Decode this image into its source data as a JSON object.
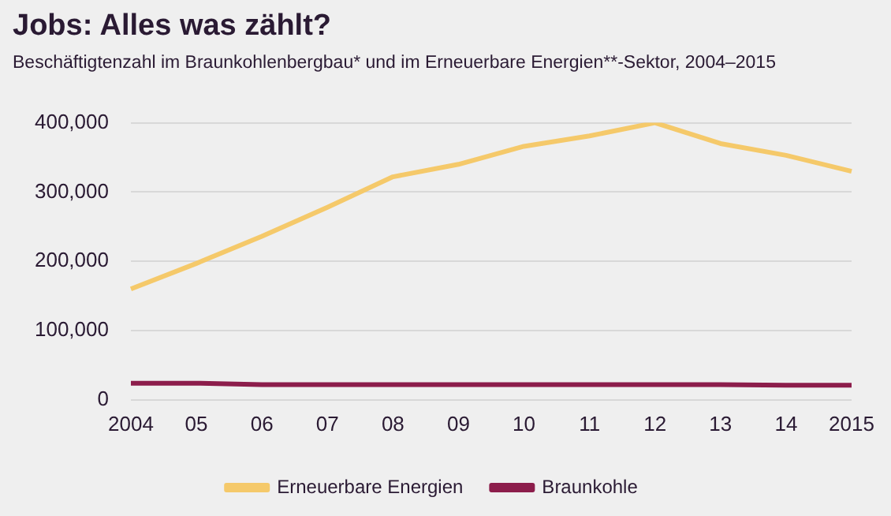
{
  "chart_data": {
    "type": "line",
    "title": "Jobs: Alles was zählt?",
    "subtitle": "Beschäftigtenzahl im Braunkohlenbergbau* und im Erneuerbare Energien**-Sektor, 2004–2015",
    "categories": [
      "2004",
      "05",
      "06",
      "07",
      "08",
      "09",
      "10",
      "11",
      "12",
      "13",
      "14",
      "2015"
    ],
    "series": [
      {
        "name": "Erneuerbare Energien",
        "color": "#f5c96a",
        "values": [
          160000,
          197000,
          236000,
          278000,
          322000,
          340000,
          366000,
          381000,
          400000,
          370000,
          353000,
          330000
        ]
      },
      {
        "name": "Braunkohle",
        "color": "#8c1d4b",
        "values": [
          24000,
          24000,
          22000,
          22000,
          22000,
          22000,
          22000,
          22000,
          22000,
          22000,
          21000,
          21000
        ]
      }
    ],
    "ylim": [
      0,
      400000
    ],
    "yticks": [
      {
        "value": 0,
        "label": "0"
      },
      {
        "value": 100000,
        "label": "100,000"
      },
      {
        "value": 200000,
        "label": "200,000"
      },
      {
        "value": 300000,
        "label": "300,000"
      },
      {
        "value": 400000,
        "label": "400,000"
      }
    ],
    "grid": "y",
    "legend": "bottom",
    "marker": "none",
    "line_style": "solid"
  }
}
